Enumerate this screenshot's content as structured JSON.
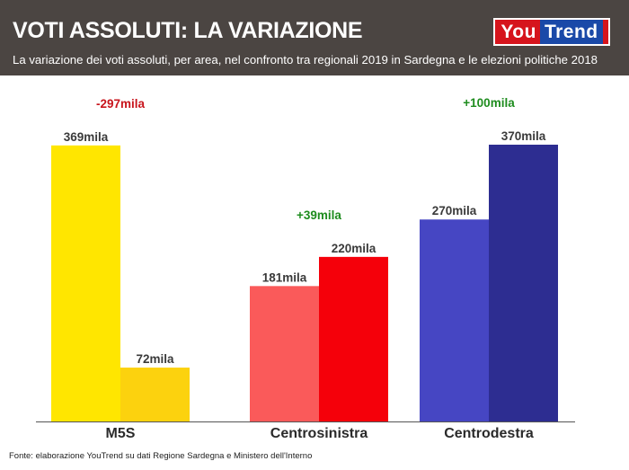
{
  "header": {
    "title": "VOTI ASSOLUTI: LA VARIAZIONE",
    "subtitle": "La variazione dei voti assoluti, per area, nel confronto tra regionali 2019 in Sardegna e le elezioni politiche 2018",
    "logo": {
      "part1": "You",
      "part2": "Trend"
    }
  },
  "footer": {
    "source": "Fonte: elaborazione YouTrend su dati Regione Sardegna e Ministero dell'Interno"
  },
  "chart_data": {
    "type": "bar",
    "categories": [
      "M5S",
      "Centrosinistra",
      "Centrodestra"
    ],
    "groups": [
      {
        "category": "M5S",
        "bars": [
          {
            "value": 369,
            "label": "369mila",
            "color": "#ffe600"
          },
          {
            "value": 72,
            "label": "72mila",
            "color": "#fcd20e"
          }
        ],
        "change": {
          "label": "-297mila",
          "color": "#c8141c"
        }
      },
      {
        "category": "Centrosinistra",
        "bars": [
          {
            "value": 181,
            "label": "181mila",
            "color": "#fa5a5a"
          },
          {
            "value": 220,
            "label": "220mila",
            "color": "#f5000a"
          }
        ],
        "change": {
          "label": "+39mila",
          "color": "#1e8c1e"
        }
      },
      {
        "category": "Centrodestra",
        "bars": [
          {
            "value": 270,
            "label": "270mila",
            "color": "#4646c3"
          },
          {
            "value": 370,
            "label": "370mila",
            "color": "#2d2d91"
          }
        ],
        "change": {
          "label": "+100mila",
          "color": "#1e8c1e"
        }
      }
    ],
    "unit": "mila",
    "ylim": [
      0,
      370
    ],
    "grid": false
  }
}
